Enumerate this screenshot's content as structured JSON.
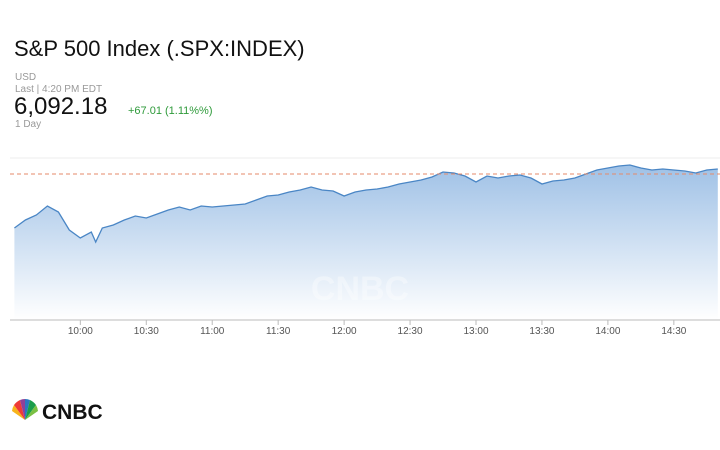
{
  "header": {
    "title": "S&P 500 Index (.SPX:INDEX)",
    "currency": "USD",
    "last": "Last | 4:20 PM EDT",
    "price": "6,092.18",
    "change": "+67.01 (1.11%%)",
    "period": "1 Day"
  },
  "logo": "CNBC",
  "chart_data": {
    "type": "line",
    "color": "#4a86c5",
    "reference_line": 6089,
    "xlim": [
      568,
      891
    ],
    "ylim": [
      6016,
      6101
    ],
    "xticks": [
      {
        "value": 600,
        "label": "10:00"
      },
      {
        "value": 630,
        "label": "10:30"
      },
      {
        "value": 660,
        "label": "11:00"
      },
      {
        "value": 690,
        "label": "11:30"
      },
      {
        "value": 720,
        "label": "12:00"
      },
      {
        "value": 750,
        "label": "12:30"
      },
      {
        "value": 780,
        "label": "13:00"
      },
      {
        "value": 810,
        "label": "13:30"
      },
      {
        "value": 840,
        "label": "14:00"
      },
      {
        "value": 870,
        "label": "14:30"
      }
    ],
    "x": [
      570,
      575,
      580,
      585,
      590,
      595,
      600,
      605,
      607,
      610,
      615,
      620,
      625,
      630,
      635,
      640,
      645,
      650,
      655,
      660,
      665,
      670,
      675,
      680,
      685,
      690,
      695,
      700,
      705,
      710,
      715,
      720,
      725,
      730,
      735,
      740,
      745,
      750,
      755,
      760,
      765,
      770,
      775,
      780,
      785,
      790,
      795,
      800,
      805,
      810,
      815,
      820,
      825,
      830,
      835,
      840,
      845,
      850,
      855,
      860,
      865,
      870,
      875,
      880,
      885,
      890
    ],
    "values": [
      6062,
      6066,
      6068.5,
      6073,
      6070,
      6061,
      6057,
      6060,
      6055,
      6062,
      6063.5,
      6066,
      6068,
      6067,
      6069,
      6071,
      6072.5,
      6071,
      6073,
      6072.5,
      6073,
      6073.5,
      6074,
      6076,
      6078,
      6078.5,
      6080,
      6081,
      6082.5,
      6081,
      6080.5,
      6078,
      6080,
      6081,
      6081.5,
      6082.5,
      6084,
      6085,
      6086,
      6087.5,
      6090,
      6089.5,
      6088,
      6085,
      6088,
      6087,
      6088,
      6088.5,
      6087,
      6084,
      6085.5,
      6086,
      6087,
      6089,
      6091,
      6092,
      6093,
      6093.5,
      6092,
      6091,
      6091.5,
      6091,
      6090.5,
      6089.5,
      6091,
      6091.5
    ]
  }
}
